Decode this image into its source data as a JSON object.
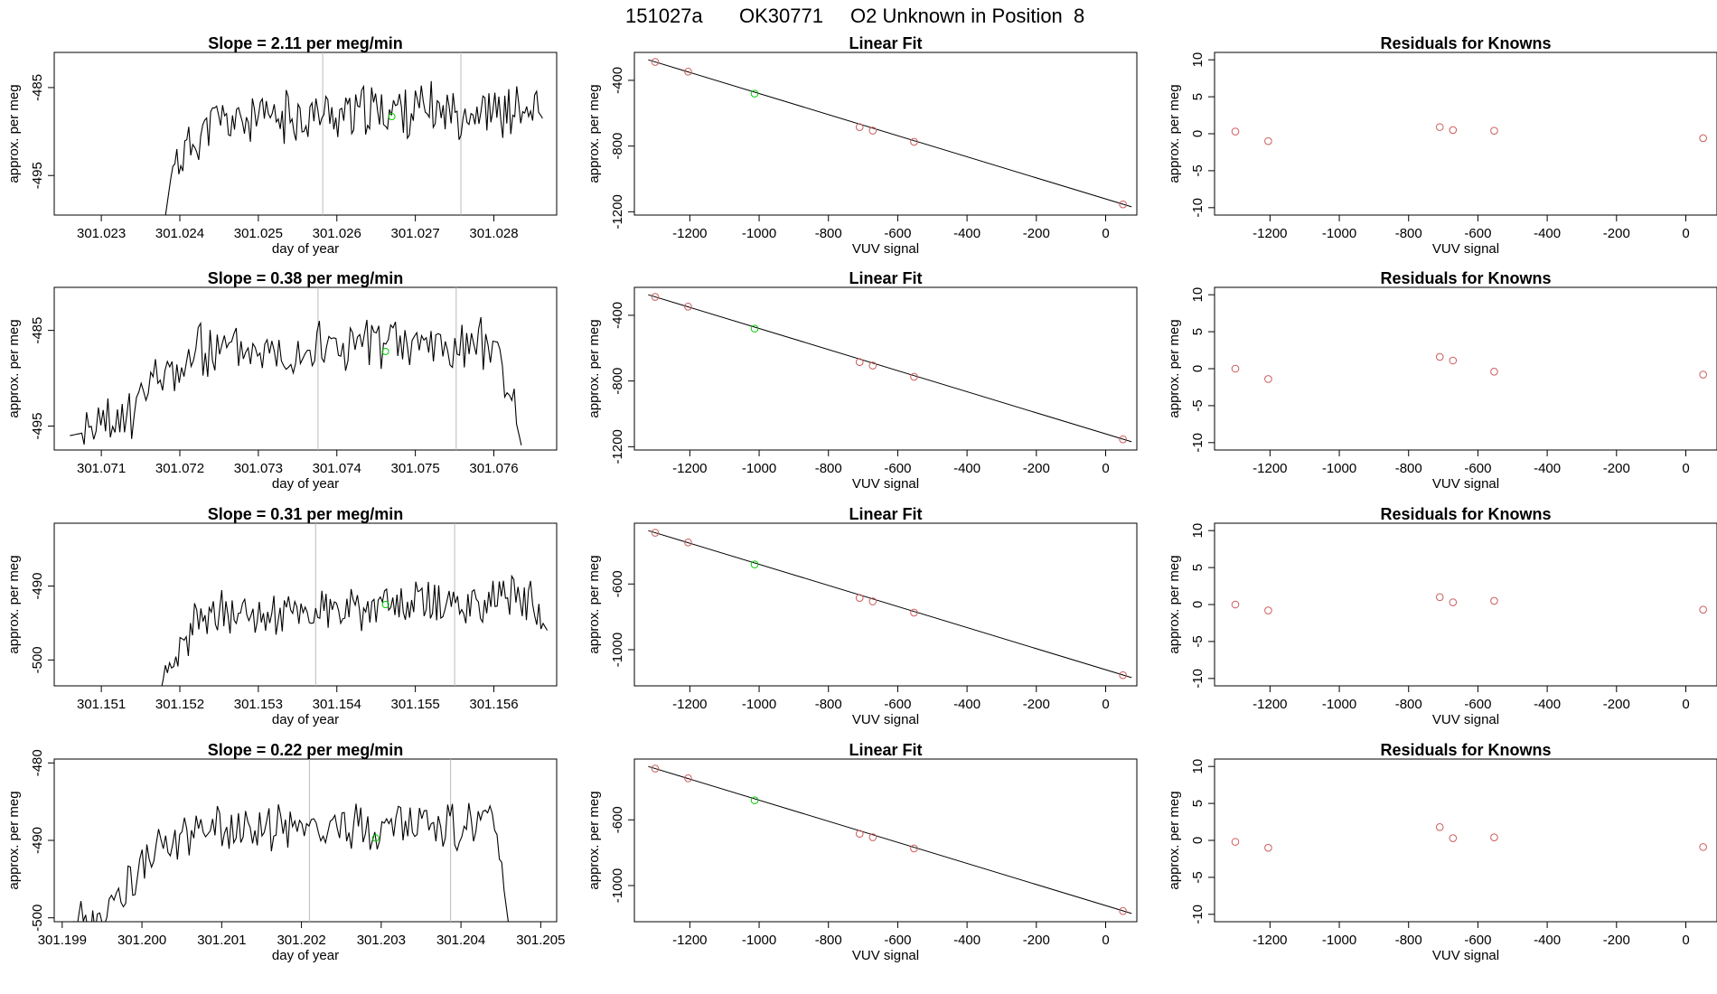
{
  "header": {
    "run_id": "151027a",
    "tank_id": "OK30771",
    "description": "O2 Unknown in Position  8"
  },
  "colors": {
    "line": "#000000",
    "known": "#cd5c5c",
    "unknown": "#00cc00",
    "vline": "#bbbbbb"
  },
  "chart_data": [
    {
      "type": "line",
      "title": "Slope =  2.11  per meg/min",
      "xlabel": "day of year",
      "ylabel": "approx. per meg",
      "xlim": [
        301.0224,
        301.0288
      ],
      "ylim": [
        -499.5,
        -481
      ],
      "xticks": [
        "301.023",
        "301.024",
        "301.025",
        "301.026",
        "301.027",
        "301.028"
      ],
      "yticks": [
        -485,
        -495
      ],
      "start": 301.02381,
      "end": 301.02862,
      "vlines": [
        301.02582,
        301.02758
      ],
      "unknown_point": {
        "x": 301.0267,
        "y": -488.3
      },
      "seed": 11,
      "profile": [
        [
          0,
          -500
        ],
        [
          0.02,
          -494
        ],
        [
          0.12,
          -489
        ],
        [
          0.6,
          -487.5
        ],
        [
          0.99,
          -487.8
        ],
        [
          1,
          -488.5
        ]
      ]
    },
    {
      "type": "scatter-line",
      "title": "Linear Fit",
      "xlabel": "VUV signal",
      "ylabel": "approx. per meg",
      "xlim": [
        -1360,
        90
      ],
      "ylim": [
        -1220,
        -230
      ],
      "xticks": [
        -1200,
        -1000,
        -800,
        -600,
        -400,
        -200,
        0
      ],
      "yticks": [
        -400,
        -800,
        -1200
      ],
      "known_x": [
        -1300,
        -1205,
        -710,
        -672,
        -553,
        50
      ],
      "known_y": [
        -288,
        -347,
        -685,
        -706,
        -774,
        -1155
      ],
      "unknown_x": -1013,
      "unknown_y": -481,
      "fit": [
        [
          -1320,
          -275
        ],
        [
          75,
          -1170
        ]
      ]
    },
    {
      "type": "scatter",
      "title": "Residuals for Knowns",
      "xlabel": "VUV signal",
      "ylabel": "approx. per meg",
      "xlim": [
        -1360,
        90
      ],
      "ylim": [
        -11,
        11
      ],
      "xticks": [
        -1200,
        -1000,
        -800,
        -600,
        -400,
        -200,
        0
      ],
      "yticks": [
        10,
        5,
        0,
        -5,
        -10
      ],
      "x": [
        -1300,
        -1205,
        -710,
        -672,
        -553,
        50
      ],
      "y": [
        0.3,
        -1.0,
        0.9,
        0.5,
        0.4,
        -0.6
      ]
    },
    {
      "type": "line",
      "title": "Slope =  0.38  per meg/min",
      "xlabel": "day of year",
      "ylabel": "approx. per meg",
      "xlim": [
        301.0704,
        301.0768
      ],
      "ylim": [
        -497.5,
        -480.5
      ],
      "xticks": [
        "301.071",
        "301.072",
        "301.073",
        "301.074",
        "301.075",
        "301.076"
      ],
      "yticks": [
        -485,
        -495
      ],
      "start": 301.0706,
      "end": 301.07635,
      "vlines": [
        301.07376,
        301.07552
      ],
      "unknown_point": {
        "x": 301.07462,
        "y": -487.2
      },
      "seed": 23,
      "profile": [
        [
          0,
          -496
        ],
        [
          0.1,
          -495
        ],
        [
          0.2,
          -490
        ],
        [
          0.3,
          -487
        ],
        [
          0.7,
          -486.5
        ],
        [
          0.95,
          -486.5
        ],
        [
          1,
          -497
        ]
      ]
    },
    {
      "type": "scatter-line",
      "title": "Linear Fit",
      "xlabel": "VUV signal",
      "ylabel": "approx. per meg",
      "xlim": [
        -1360,
        90
      ],
      "ylim": [
        -1220,
        -230
      ],
      "xticks": [
        -1200,
        -1000,
        -800,
        -600,
        -400,
        -200,
        0
      ],
      "yticks": [
        -400,
        -800,
        -1200
      ],
      "known_x": [
        -1300,
        -1205,
        -710,
        -672,
        -553,
        50
      ],
      "known_y": [
        -288,
        -347,
        -685,
        -706,
        -774,
        -1155
      ],
      "unknown_x": -1013,
      "unknown_y": -481,
      "fit": [
        [
          -1320,
          -275
        ],
        [
          75,
          -1170
        ]
      ]
    },
    {
      "type": "scatter",
      "title": "Residuals for Knowns",
      "xlabel": "VUV signal",
      "ylabel": "approx. per meg",
      "xlim": [
        -1360,
        90
      ],
      "ylim": [
        -11,
        11
      ],
      "xticks": [
        -1200,
        -1000,
        -800,
        -600,
        -400,
        -200,
        0
      ],
      "yticks": [
        10,
        5,
        0,
        -5,
        -10
      ],
      "x": [
        -1300,
        -1205,
        -710,
        -672,
        -553,
        50
      ],
      "y": [
        0.0,
        -1.4,
        1.6,
        1.1,
        -0.4,
        -0.8
      ]
    },
    {
      "type": "line",
      "title": "Slope =  0.31  per meg/min",
      "xlabel": "day of year",
      "ylabel": "approx. per meg",
      "xlim": [
        301.1504,
        301.1568
      ],
      "ylim": [
        -503.5,
        -481.5
      ],
      "xticks": [
        "301.151",
        "301.152",
        "301.153",
        "301.154",
        "301.155",
        "301.156"
      ],
      "yticks": [
        -490,
        -500
      ],
      "start": 301.15163,
      "end": 301.15668,
      "vlines": [
        301.15373,
        301.1555
      ],
      "unknown_point": {
        "x": 301.15462,
        "y": -492.5
      },
      "seed": 37,
      "profile": [
        [
          0,
          -505
        ],
        [
          0.05,
          -503
        ],
        [
          0.12,
          -494
        ],
        [
          0.5,
          -493
        ],
        [
          0.95,
          -491.5
        ],
        [
          1,
          -496
        ]
      ]
    },
    {
      "type": "scatter-line",
      "title": "Linear Fit",
      "xlabel": "VUV signal",
      "ylabel": "approx. per meg",
      "xlim": [
        -1360,
        90
      ],
      "ylim": [
        -1220,
        -230
      ],
      "xticks": [
        -1200,
        -1000,
        -800,
        -600,
        -400,
        -200,
        0
      ],
      "yticks": [
        -600,
        -1000
      ],
      "known_x": [
        -1300,
        -1205,
        -710,
        -672,
        -553,
        50
      ],
      "known_y": [
        -288,
        -347,
        -685,
        -706,
        -774,
        -1155
      ],
      "unknown_x": -1013,
      "unknown_y": -481,
      "fit": [
        [
          -1320,
          -275
        ],
        [
          75,
          -1170
        ]
      ]
    },
    {
      "type": "scatter",
      "title": "Residuals for Knowns",
      "xlabel": "VUV signal",
      "ylabel": "approx. per meg",
      "xlim": [
        -1360,
        90
      ],
      "ylim": [
        -11,
        11
      ],
      "xticks": [
        -1200,
        -1000,
        -800,
        -600,
        -400,
        -200,
        0
      ],
      "yticks": [
        10,
        5,
        0,
        -5,
        -10
      ],
      "x": [
        -1300,
        -1205,
        -710,
        -672,
        -553,
        50
      ],
      "y": [
        0.0,
        -0.8,
        1.0,
        0.3,
        0.5,
        -0.7
      ]
    },
    {
      "type": "line",
      "title": "Slope =  0.22  per meg/min",
      "xlabel": "day of year",
      "ylabel": "approx. per meg",
      "xlim": [
        301.1989,
        301.2052
      ],
      "ylim": [
        -500.5,
        -479.5
      ],
      "xticks": [
        "301.199",
        "301.200",
        "301.201",
        "301.202",
        "301.203",
        "301.204",
        "301.205"
      ],
      "yticks": [
        -480,
        -490,
        -500
      ],
      "start": 301.199,
      "end": 301.2046,
      "vlines": [
        301.2021,
        301.20387
      ],
      "unknown_point": {
        "x": 301.20293,
        "y": -489.7
      },
      "seed": 53,
      "profile": [
        [
          0,
          -501
        ],
        [
          0.1,
          -499
        ],
        [
          0.2,
          -492
        ],
        [
          0.3,
          -488.5
        ],
        [
          0.97,
          -488
        ],
        [
          1,
          -501
        ]
      ]
    },
    {
      "type": "scatter-line",
      "title": "Linear Fit",
      "xlabel": "VUV signal",
      "ylabel": "approx. per meg",
      "xlim": [
        -1360,
        90
      ],
      "ylim": [
        -1220,
        -230
      ],
      "xticks": [
        -1200,
        -1000,
        -800,
        -600,
        -400,
        -200,
        0
      ],
      "yticks": [
        -600,
        -1000
      ],
      "known_x": [
        -1300,
        -1205,
        -710,
        -672,
        -553,
        50
      ],
      "known_y": [
        -288,
        -347,
        -685,
        -706,
        -774,
        -1155
      ],
      "unknown_x": -1013,
      "unknown_y": -481,
      "fit": [
        [
          -1320,
          -275
        ],
        [
          75,
          -1170
        ]
      ]
    },
    {
      "type": "scatter",
      "title": "Residuals for Knowns",
      "xlabel": "VUV signal",
      "ylabel": "approx. per meg",
      "xlim": [
        -1360,
        90
      ],
      "ylim": [
        -11,
        11
      ],
      "xticks": [
        -1200,
        -1000,
        -800,
        -600,
        -400,
        -200,
        0
      ],
      "yticks": [
        10,
        5,
        0,
        -5,
        -10
      ],
      "x": [
        -1300,
        -1205,
        -710,
        -672,
        -553,
        50
      ],
      "y": [
        -0.2,
        -1.0,
        1.8,
        0.3,
        0.4,
        -0.9
      ]
    }
  ]
}
